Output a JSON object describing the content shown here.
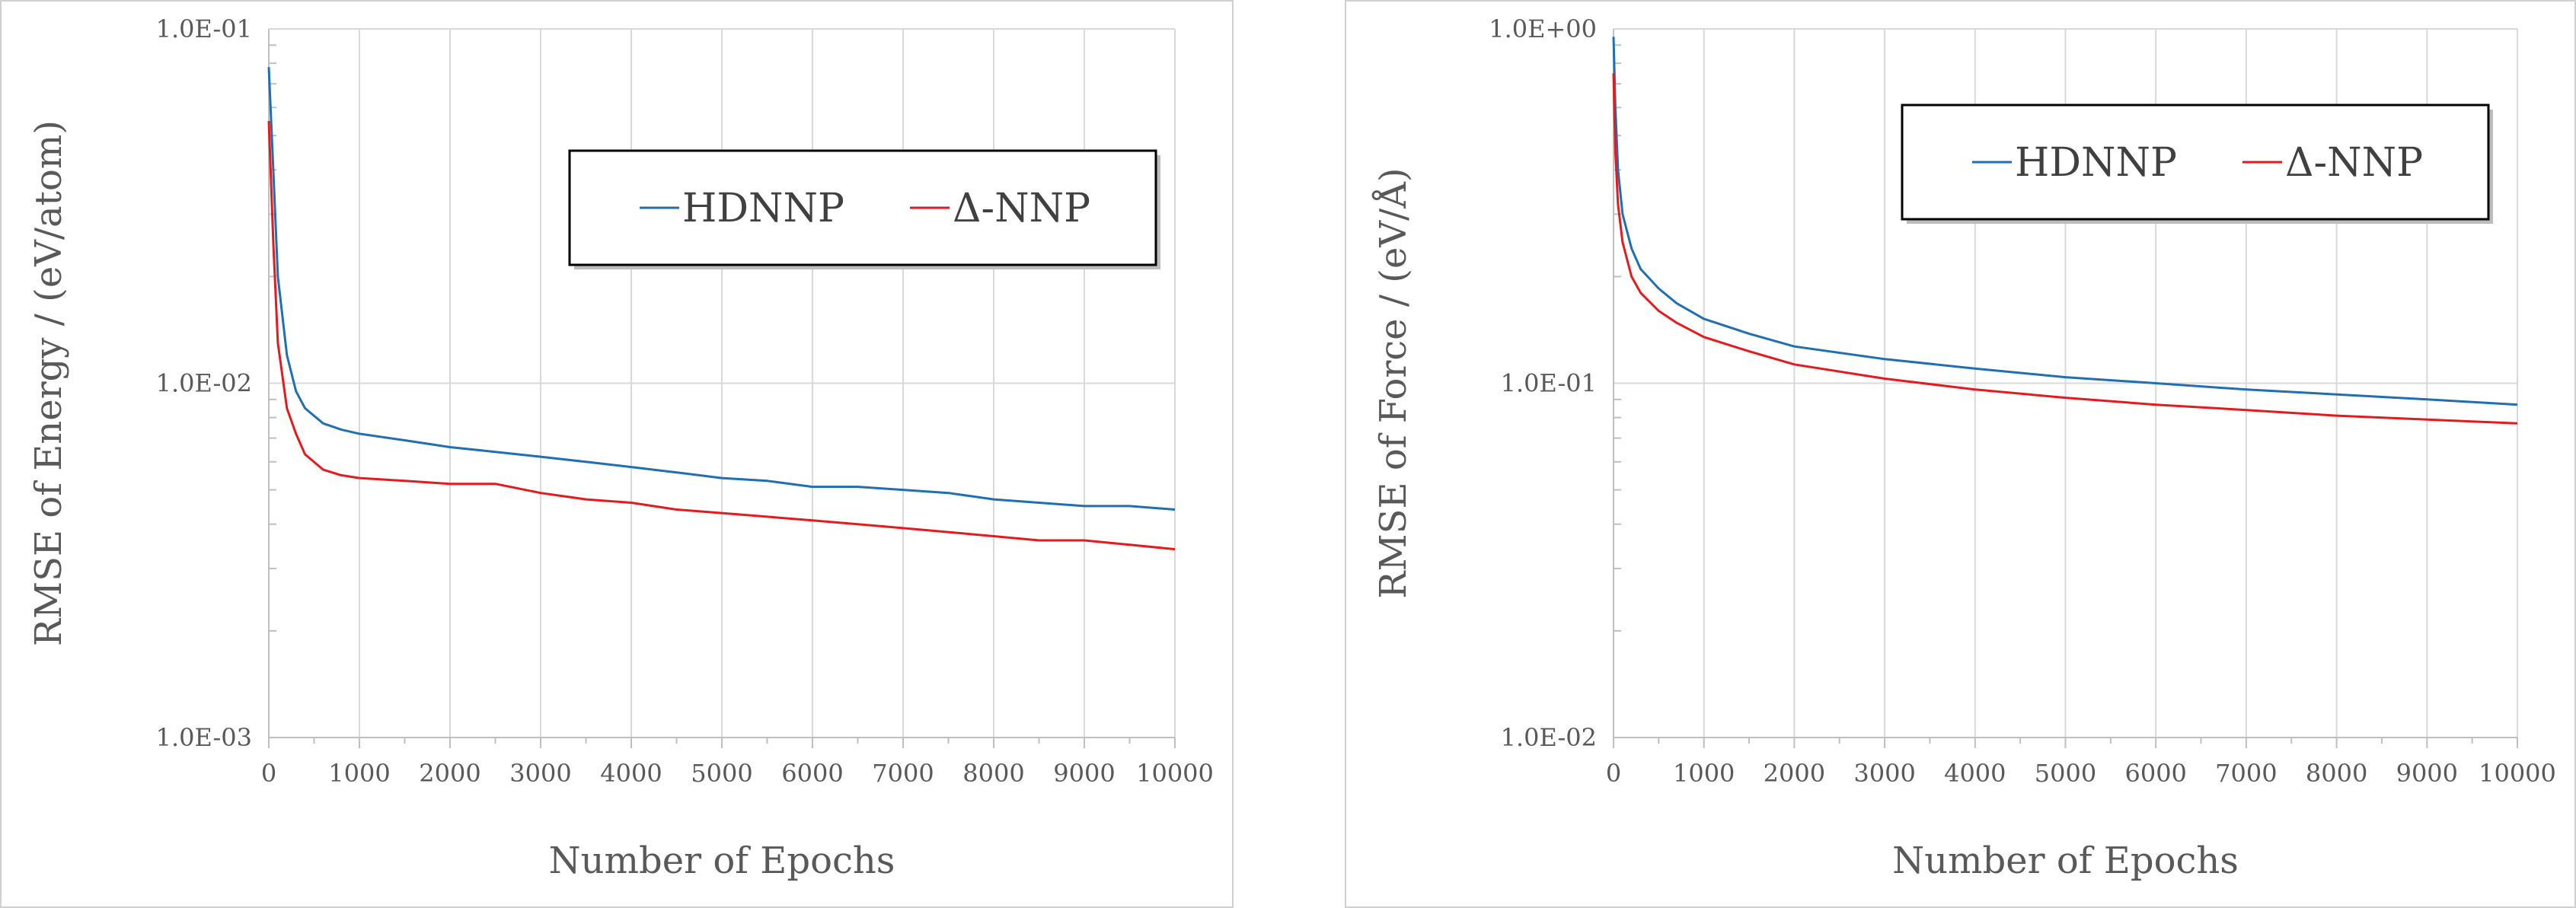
{
  "chart_data": [
    {
      "type": "line",
      "title": "",
      "xlabel": "Number of Epochs",
      "ylabel": "RMSE of Energy / (eV/atom)",
      "yscale": "log",
      "xlim": [
        0,
        10000
      ],
      "ylim": [
        0.001,
        0.1
      ],
      "x_ticks": [
        "0",
        "1000",
        "2000",
        "3000",
        "4000",
        "5000",
        "6000",
        "7000",
        "8000",
        "9000",
        "10000"
      ],
      "y_ticks": [
        "1.0E-03",
        "1.0E-02",
        "1.0E-01"
      ],
      "grid": true,
      "legend_position": "top-right",
      "series": [
        {
          "name": "HDNNP",
          "color": "#1f6fb4",
          "x": [
            0,
            50,
            100,
            200,
            300,
            400,
            600,
            800,
            1000,
            1500,
            2000,
            2500,
            3000,
            3500,
            4000,
            4500,
            5000,
            5500,
            6000,
            6500,
            7000,
            7500,
            8000,
            8500,
            9000,
            9500,
            10000
          ],
          "y": [
            0.078,
            0.04,
            0.02,
            0.012,
            0.0095,
            0.0085,
            0.0077,
            0.0074,
            0.0072,
            0.0069,
            0.0066,
            0.0064,
            0.0062,
            0.006,
            0.0058,
            0.0056,
            0.0054,
            0.0053,
            0.0051,
            0.0051,
            0.005,
            0.0049,
            0.0047,
            0.0046,
            0.0045,
            0.0045,
            0.0044
          ]
        },
        {
          "name": "Δ-NNP",
          "color": "#e8191c",
          "x": [
            0,
            50,
            100,
            200,
            300,
            400,
            600,
            800,
            1000,
            1500,
            2000,
            2500,
            3000,
            3500,
            4000,
            4500,
            5000,
            5500,
            6000,
            6500,
            7000,
            7500,
            8000,
            8500,
            9000,
            9500,
            10000
          ],
          "y": [
            0.055,
            0.025,
            0.013,
            0.0085,
            0.0072,
            0.0063,
            0.0057,
            0.0055,
            0.0054,
            0.0053,
            0.0052,
            0.0052,
            0.0049,
            0.0047,
            0.0046,
            0.0044,
            0.0043,
            0.0042,
            0.0041,
            0.004,
            0.0039,
            0.0038,
            0.0037,
            0.0036,
            0.0036,
            0.0035,
            0.0034
          ]
        }
      ]
    },
    {
      "type": "line",
      "title": "",
      "xlabel": "Number of Epochs",
      "ylabel": "RMSE of Force / (eV/Å)",
      "yscale": "log",
      "xlim": [
        0,
        10000
      ],
      "ylim": [
        0.01,
        1.0
      ],
      "x_ticks": [
        "0",
        "1000",
        "2000",
        "3000",
        "4000",
        "5000",
        "6000",
        "7000",
        "8000",
        "9000",
        "10000"
      ],
      "y_ticks": [
        "1.0E-02",
        "1.0E-01",
        "1.0E+00"
      ],
      "grid": true,
      "legend_position": "top-right",
      "series": [
        {
          "name": "HDNNP",
          "color": "#1f6fb4",
          "x": [
            0,
            20,
            50,
            100,
            200,
            300,
            500,
            700,
            1000,
            1500,
            2000,
            3000,
            4000,
            5000,
            6000,
            7000,
            8000,
            9000,
            10000
          ],
          "y": [
            0.95,
            0.6,
            0.4,
            0.3,
            0.24,
            0.21,
            0.185,
            0.168,
            0.152,
            0.138,
            0.127,
            0.117,
            0.11,
            0.104,
            0.1,
            0.096,
            0.093,
            0.09,
            0.087
          ]
        },
        {
          "name": "Δ-NNP",
          "color": "#e8191c",
          "x": [
            0,
            20,
            50,
            100,
            200,
            300,
            500,
            700,
            1000,
            1500,
            2000,
            3000,
            4000,
            5000,
            6000,
            7000,
            8000,
            9000,
            10000
          ],
          "y": [
            0.75,
            0.45,
            0.32,
            0.25,
            0.2,
            0.18,
            0.16,
            0.148,
            0.135,
            0.123,
            0.113,
            0.103,
            0.096,
            0.091,
            0.087,
            0.084,
            0.081,
            0.079,
            0.077
          ]
        }
      ]
    }
  ]
}
